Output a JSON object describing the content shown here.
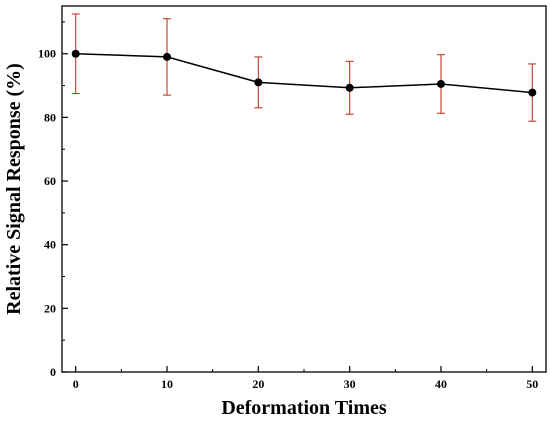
{
  "chart_data": {
    "type": "line",
    "xlabel": "Deformation Times",
    "ylabel": "Relative Signal Response (%)",
    "xlim": [
      -1.5,
      51.5
    ],
    "ylim": [
      0,
      115
    ],
    "xticks": [
      0,
      10,
      20,
      30,
      40,
      50
    ],
    "yticks": [
      0,
      20,
      40,
      60,
      80,
      100
    ],
    "grid": false,
    "series": [
      {
        "x": [
          0,
          10,
          20,
          30,
          40,
          50
        ],
        "y": [
          100,
          99,
          91,
          89.3,
          90.5,
          87.8
        ],
        "error": [
          12.5,
          12,
          8,
          8.3,
          9.2,
          9
        ],
        "line_color": "#000000",
        "error_color": "#c0392b"
      }
    ]
  }
}
